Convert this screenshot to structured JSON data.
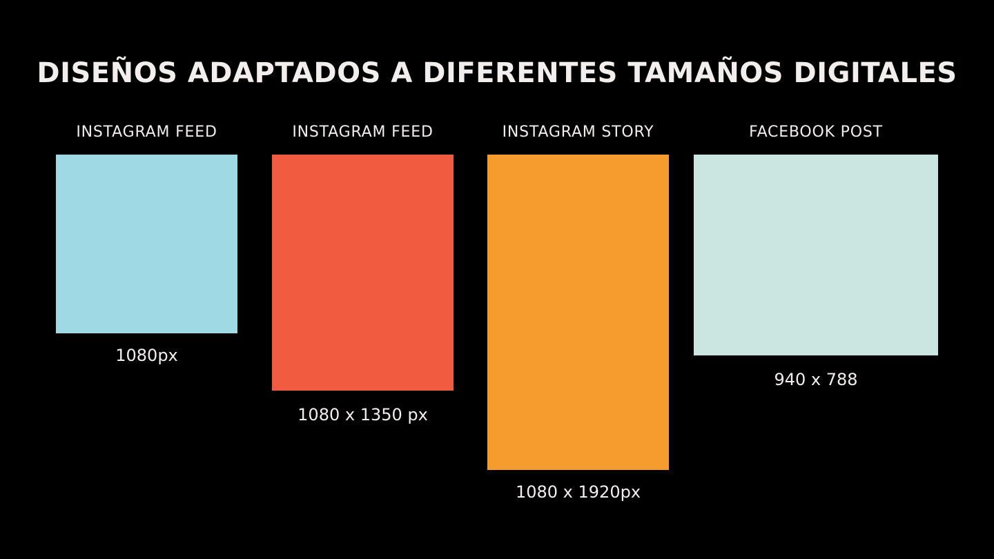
{
  "title": "DISEÑOS ADAPTADOS A DIFERENTES TAMAÑOS DIGITALES",
  "formats": [
    {
      "label": "INSTAGRAM FEED",
      "size": "1080px",
      "color": "#9fd9e3"
    },
    {
      "label": "INSTAGRAM FEED",
      "size": "1080 x 1350 px",
      "color": "#f15b40"
    },
    {
      "label": "INSTAGRAM STORY",
      "size": "1080 x 1920px",
      "color": "#f69c2e"
    },
    {
      "label": "FACEBOOK POST",
      "size": "940 x 788",
      "color": "#cbe5e1"
    }
  ]
}
